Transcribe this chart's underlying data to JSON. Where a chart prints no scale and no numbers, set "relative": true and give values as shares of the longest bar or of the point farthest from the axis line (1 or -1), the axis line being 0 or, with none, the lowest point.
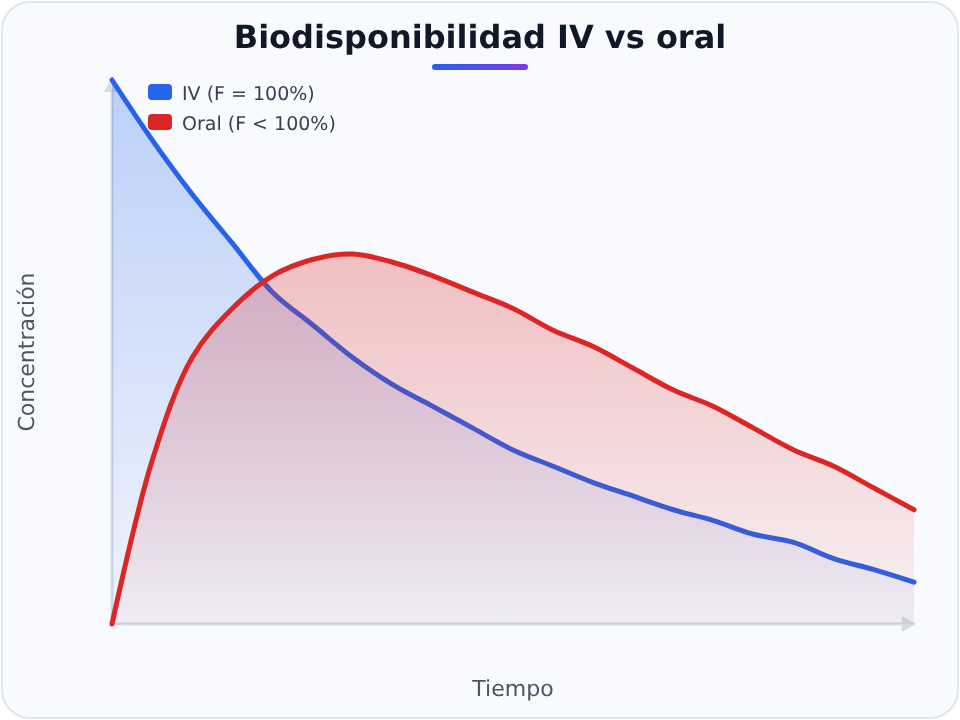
{
  "chart_data": {
    "type": "area",
    "title": "Biodisponibilidad IV vs oral",
    "xlabel": "Tiempo",
    "ylabel": "Concentración",
    "relative": true,
    "legend": "top left",
    "categories": [
      null,
      null,
      null,
      null,
      null,
      null,
      null,
      null,
      null,
      null,
      null,
      null,
      null,
      null,
      null,
      null,
      null,
      null,
      null,
      null,
      null
    ],
    "series": [
      {
        "name": "IV (F = 100%)",
        "color": "#2563eb",
        "values": [
          1.0,
          0.89,
          0.79,
          0.7,
          0.61,
          0.55,
          0.49,
          0.44,
          0.4,
          0.36,
          0.32,
          0.29,
          0.26,
          0.235,
          0.21,
          0.19,
          0.165,
          0.15,
          0.12,
          0.1,
          0.077
        ]
      },
      {
        "name": "Oral (F < 100%)",
        "color": "#dc2626",
        "values": [
          0,
          0.3,
          0.49,
          0.58,
          0.64,
          0.67,
          0.68,
          0.665,
          0.64,
          0.61,
          0.58,
          0.54,
          0.51,
          0.47,
          0.43,
          0.4,
          0.36,
          0.32,
          0.29,
          0.25,
          0.21
        ]
      }
    ]
  }
}
